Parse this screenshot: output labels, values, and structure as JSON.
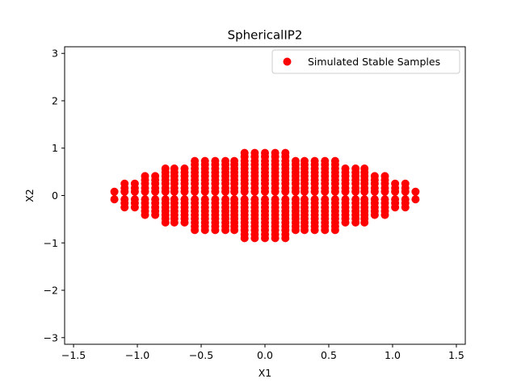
{
  "chart_data": {
    "type": "scatter",
    "title": "SphericalIP2",
    "xlabel": "X1",
    "ylabel": "X2",
    "xlim": [
      -1.57,
      1.57
    ],
    "ylim": [
      -3.14,
      3.14
    ],
    "xticks": [
      "−1.5",
      "−1.0",
      "−0.5",
      "0.0",
      "0.5",
      "1.0",
      "1.5"
    ],
    "xtick_values": [
      -1.5,
      -1.0,
      -0.5,
      0.0,
      0.5,
      1.0,
      1.5
    ],
    "yticks": [
      "−3",
      "−2",
      "−1",
      "0",
      "1",
      "2",
      "3"
    ],
    "ytick_values": [
      -3,
      -2,
      -1,
      0,
      1,
      2,
      3
    ],
    "grid": false,
    "legend_position": "upper right",
    "series": [
      {
        "name": "Simulated Stable Samples",
        "color": "#ff0000",
        "marker": "circle",
        "grid_points": {
          "columns_x": [
            -1.18,
            -1.1,
            -1.02,
            -0.94,
            -0.86,
            -0.78,
            -0.71,
            -0.63,
            -0.55,
            -0.47,
            -0.39,
            -0.31,
            -0.24,
            -0.16,
            -0.08,
            0.0,
            0.08,
            0.16,
            0.24,
            0.31,
            0.39,
            0.47,
            0.55,
            0.63,
            0.71,
            0.78,
            0.86,
            0.94,
            1.02,
            1.1,
            1.18
          ],
          "column_max_abs_y": [
            0.08,
            0.25,
            0.25,
            0.41,
            0.41,
            0.57,
            0.57,
            0.57,
            0.73,
            0.73,
            0.73,
            0.73,
            0.73,
            0.9,
            0.9,
            0.9,
            0.9,
            0.9,
            0.73,
            0.73,
            0.73,
            0.73,
            0.73,
            0.57,
            0.57,
            0.57,
            0.41,
            0.41,
            0.25,
            0.25,
            0.08
          ],
          "y_levels": [
            -0.9,
            -0.82,
            -0.73,
            -0.65,
            -0.57,
            -0.49,
            -0.41,
            -0.33,
            -0.25,
            -0.16,
            -0.08,
            0.08,
            0.16,
            0.25,
            0.33,
            0.41,
            0.49,
            0.57,
            0.65,
            0.73,
            0.82,
            0.9
          ]
        }
      }
    ]
  }
}
